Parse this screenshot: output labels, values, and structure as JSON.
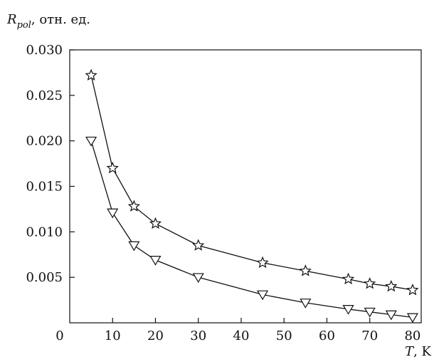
{
  "chart_data": {
    "type": "line",
    "title": "",
    "ylabel": {
      "symbol": "R",
      "subscript": "pol",
      "unit": ", отн. ед."
    },
    "xlabel": {
      "symbol": "T",
      "unit": ", K"
    },
    "xlim": [
      0,
      82
    ],
    "ylim": [
      0,
      0.03
    ],
    "x_ticks": [
      10,
      20,
      30,
      40,
      50,
      60,
      70,
      80
    ],
    "x_tick_labels": [
      "10",
      "20",
      "30",
      "40",
      "50",
      "60",
      "70",
      "80"
    ],
    "y_ticks": [
      0.005,
      0.01,
      0.015,
      0.02,
      0.025,
      0.03
    ],
    "y_tick_labels": [
      "0.005",
      "0.010",
      "0.015",
      "0.020",
      "0.025",
      "0.030"
    ],
    "origin_label": "0",
    "grid": false,
    "legend": "none",
    "series": [
      {
        "marker": "star",
        "color": "#111111",
        "x": [
          5,
          10,
          15,
          20,
          30,
          45,
          55,
          65,
          70,
          75,
          80
        ],
        "y": [
          0.0272,
          0.017,
          0.0128,
          0.0109,
          0.0085,
          0.0066,
          0.0057,
          0.0048,
          0.0043,
          0.004,
          0.0036
        ]
      },
      {
        "marker": "triangle-down",
        "color": "#111111",
        "x": [
          5,
          10,
          15,
          20,
          30,
          45,
          55,
          65,
          70,
          75,
          80
        ],
        "y": [
          0.02,
          0.0121,
          0.0085,
          0.0069,
          0.005,
          0.0031,
          0.0022,
          0.0015,
          0.0012,
          0.0009,
          0.0006
        ]
      }
    ]
  }
}
